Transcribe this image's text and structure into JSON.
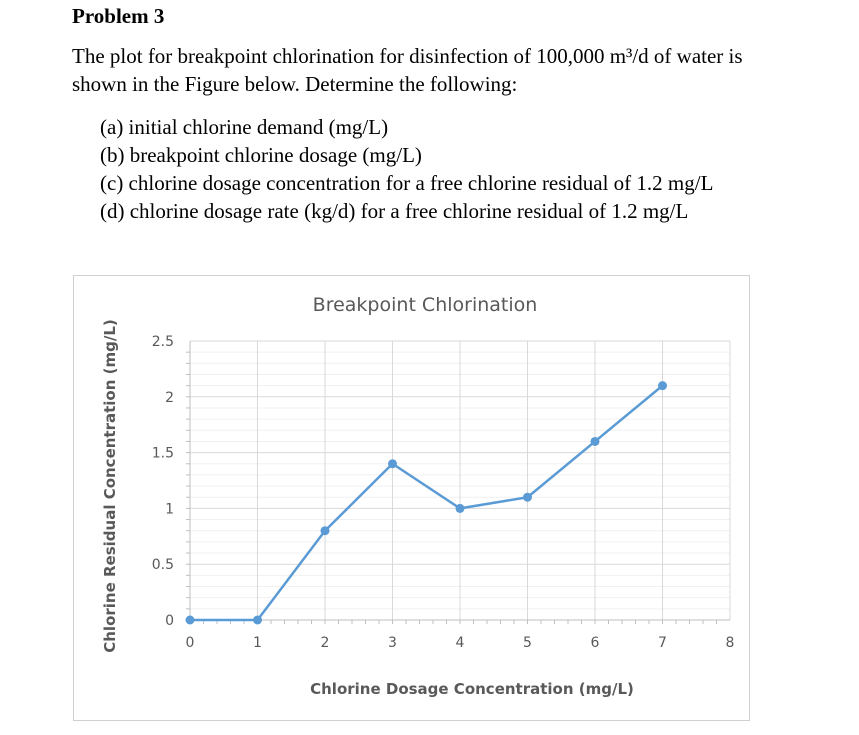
{
  "problem": {
    "heading": "Problem 3",
    "intro_line1": "The plot for breakpoint chlorination for disinfection of 100,000 m³/d of water is",
    "intro_line2": "shown in the Figure below.   Determine the following:",
    "items": [
      "(a) initial chlorine demand (mg/L)",
      "(b) breakpoint chlorine dosage (mg/L)",
      "(c) chlorine dosage concentration for a free chlorine residual of 1.2 mg/L",
      "(d) chlorine dosage rate (kg/d) for a free chlorine residual of 1.2 mg/L"
    ]
  },
  "chart_data": {
    "type": "line",
    "title": "Breakpoint Chlorination",
    "xlabel": "Chlorine Dosage Concentration (mg/L)",
    "ylabel": "Chlorine Residual Concentration (mg/L)",
    "x": [
      0,
      1,
      2,
      3,
      4,
      5,
      6,
      7
    ],
    "y": [
      0,
      0,
      0.8,
      1.4,
      1.0,
      1.1,
      1.6,
      2.1
    ],
    "xlim": [
      0,
      8
    ],
    "ylim": [
      0,
      2.5
    ],
    "xticks": [
      0,
      1,
      2,
      3,
      4,
      5,
      6,
      7,
      8
    ],
    "yticks": [
      0,
      0.5,
      1,
      1.5,
      2,
      2.5
    ],
    "xtick_labels": [
      "0",
      "1",
      "2",
      "3",
      "4",
      "5",
      "6",
      "7",
      "8"
    ],
    "ytick_labels": [
      "0",
      "0.5",
      "1",
      "1.5",
      "2",
      "2.5"
    ],
    "grid": true,
    "colors": {
      "series": "#5b9bd5",
      "grid": "#d9d9d9",
      "axis": "#bfbfbf",
      "text": "#595959"
    }
  }
}
